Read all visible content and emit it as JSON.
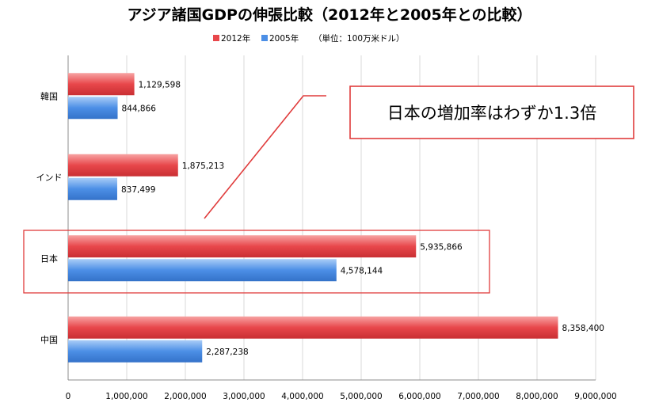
{
  "colors": {
    "series_2012": "#e8474b",
    "series_2005": "#4c8fe6",
    "highlight": "#e03c3c",
    "grid": "#d9d9d9"
  },
  "chart_data": {
    "type": "bar",
    "orientation": "horizontal",
    "title": "アジア諸国GDPの伸張比較（2012年と2005年との比較）",
    "unit_note": "（単位：100万米ドル）",
    "categories": [
      "韓国",
      "インド",
      "日本",
      "中国"
    ],
    "series": [
      {
        "name": "2012年",
        "values": [
          1129598,
          1875213,
          5935866,
          8358400
        ],
        "labels": [
          "1,129,598",
          "1,875,213",
          "5,935,866",
          "8,358,400"
        ]
      },
      {
        "name": "2005年",
        "values": [
          844866,
          837499,
          4578144,
          2287238
        ],
        "labels": [
          "844,866",
          "837,499",
          "4,578,144",
          "2,287,238"
        ]
      }
    ],
    "xlim": [
      0,
      9000000
    ],
    "xticks": [
      0,
      1000000,
      2000000,
      3000000,
      4000000,
      5000000,
      6000000,
      7000000,
      8000000,
      9000000
    ],
    "xtick_labels": [
      "0",
      "1,000,000",
      "2,000,000",
      "3,000,000",
      "4,000,000",
      "5,000,000",
      "6,000,000",
      "7,000,000",
      "8,000,000",
      "9,000,000"
    ],
    "grid": true,
    "legend_position": "top-center",
    "highlighted_category": "日本",
    "annotation": "日本の増加率はわずか1.3倍"
  }
}
